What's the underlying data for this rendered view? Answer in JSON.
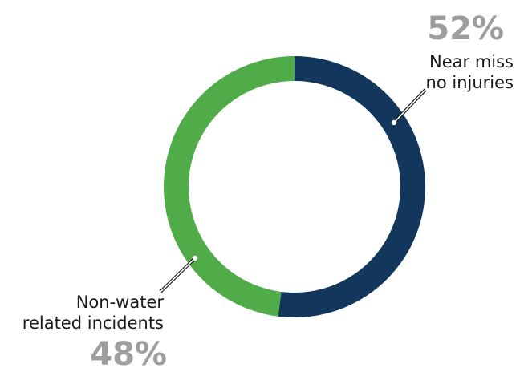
{
  "chart_data": {
    "type": "pie",
    "style": "donut",
    "categories": [
      "Near miss no injuries",
      "Non-water related incidents"
    ],
    "values": [
      52,
      48
    ],
    "slices": [
      {
        "label_lines": [
          "Near miss",
          "no injuries"
        ],
        "percent_label": "52%",
        "value": 52,
        "color": "#12365c"
      },
      {
        "label_lines": [
          "Non-water",
          "related incidents"
        ],
        "percent_label": "48%",
        "value": 48,
        "color": "#4fac48"
      }
    ],
    "start_angle": "12 o'clock",
    "direction": "clockwise",
    "legend": "none",
    "title": ""
  },
  "colors": {
    "near_miss": "#12365c",
    "non_water": "#4fac48",
    "percent_text": "#9e9e9e",
    "label_text": "#1a1a1a"
  }
}
